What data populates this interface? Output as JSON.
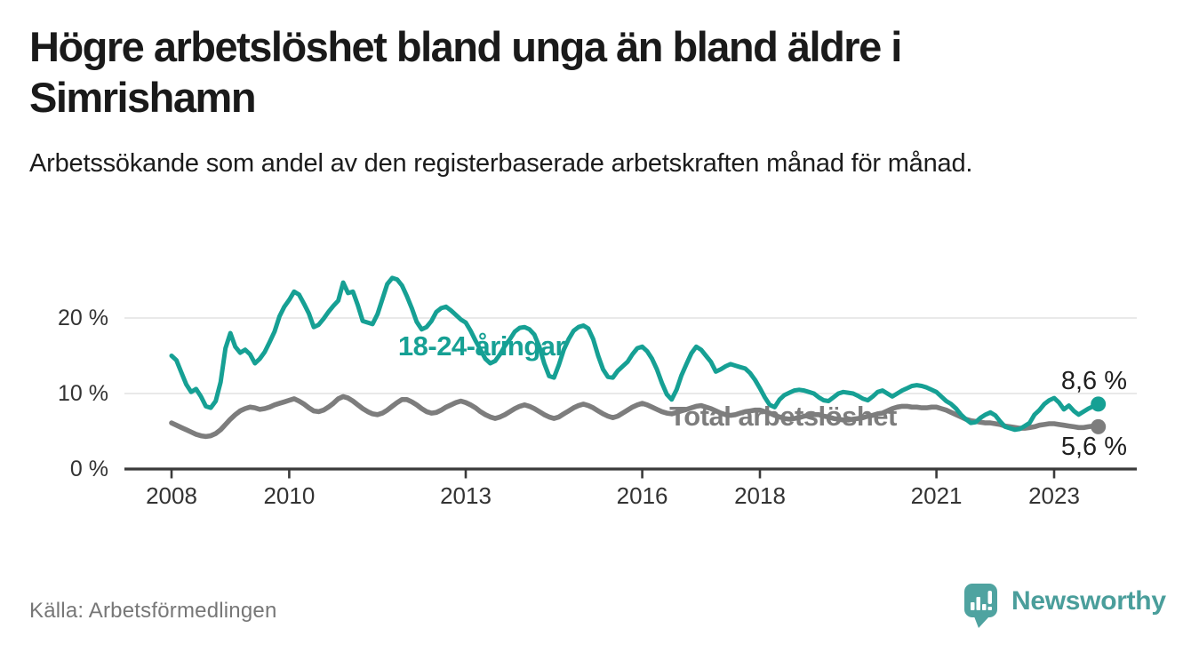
{
  "header": {
    "title": "Högre arbetslöshet bland unga än bland äldre i Simrishamn",
    "subtitle": "Arbetssökande som andel av den registerbaserade arbetskraften månad för månad."
  },
  "footer": {
    "source": "Källa: Arbetsförmedlingen",
    "brand": "Newsworthy"
  },
  "colors": {
    "youth": "#16A094",
    "total": "#7d7d7d",
    "axis": "#3a3a3a",
    "gridline": "#e2e2e2",
    "text": "#333333",
    "brand_teal": "#4A9E9B"
  },
  "chart_data": {
    "type": "line",
    "title": "Högre arbetslöshet bland unga än bland äldre i Simrishamn",
    "subtitle": "Arbetssökande som andel av den registerbaserade arbetskraften månad för månad.",
    "unit": "%",
    "frequency": "monthly",
    "x_start": "2008-01",
    "x_end": "2023-10",
    "grid": "horizontal",
    "legend": "inline-labels",
    "x_ticks": [
      2008,
      2010,
      2013,
      2016,
      2018,
      2021,
      2023
    ],
    "y_ticks": [
      {
        "value": 0,
        "label": "0 %"
      },
      {
        "value": 10,
        "label": "10 %"
      },
      {
        "value": 20,
        "label": "20 %"
      }
    ],
    "ylim": [
      0,
      27
    ],
    "series": [
      {
        "name": "18-24-åringar",
        "color": "#16A094",
        "end_label": "8,6 %",
        "final_value": 8.6,
        "values": [
          15.0,
          14.4,
          12.8,
          11.2,
          10.2,
          10.6,
          9.6,
          8.3,
          8.1,
          9.0,
          11.5,
          16.0,
          18.0,
          16.2,
          15.4,
          15.8,
          15.2,
          14.0,
          14.6,
          15.5,
          16.8,
          18.2,
          20.2,
          21.5,
          22.4,
          23.5,
          23.1,
          21.9,
          20.6,
          18.8,
          19.1,
          19.9,
          20.8,
          21.6,
          22.3,
          24.7,
          23.3,
          23.5,
          21.7,
          19.6,
          19.4,
          19.2,
          20.5,
          22.5,
          24.5,
          25.3,
          25.1,
          24.3,
          22.9,
          21.3,
          19.5,
          18.5,
          18.8,
          19.6,
          20.8,
          21.3,
          21.5,
          21.0,
          20.4,
          19.8,
          19.4,
          18.3,
          17.0,
          15.8,
          14.6,
          14.0,
          14.3,
          15.2,
          16.3,
          17.2,
          18.2,
          18.7,
          18.8,
          18.5,
          17.8,
          16.2,
          14.0,
          12.3,
          12.1,
          13.8,
          15.8,
          17.2,
          18.3,
          18.8,
          19.0,
          18.6,
          17.2,
          15.0,
          13.2,
          12.2,
          12.1,
          13.0,
          13.6,
          14.2,
          15.2,
          16.0,
          16.2,
          15.6,
          14.6,
          13.2,
          11.4,
          9.9,
          9.2,
          10.5,
          12.4,
          13.9,
          15.3,
          16.2,
          15.8,
          15.0,
          14.2,
          12.9,
          13.2,
          13.6,
          13.9,
          13.7,
          13.5,
          13.3,
          12.7,
          11.8,
          10.7,
          9.5,
          8.5,
          8.2,
          9.2,
          9.8,
          10.1,
          10.4,
          10.5,
          10.4,
          10.2,
          10.0,
          9.5,
          9.1,
          9.0,
          9.5,
          10.0,
          10.2,
          10.1,
          10.0,
          9.7,
          9.3,
          9.1,
          9.6,
          10.2,
          10.4,
          10.0,
          9.6,
          10.0,
          10.4,
          10.7,
          11.0,
          11.1,
          11.0,
          10.8,
          10.5,
          10.2,
          9.6,
          9.0,
          8.6,
          8.0,
          7.2,
          6.6,
          6.1,
          6.2,
          6.8,
          7.2,
          7.5,
          7.1,
          6.3,
          5.6,
          5.4,
          5.2,
          5.3,
          5.7,
          6.1,
          7.2,
          7.8,
          8.6,
          9.1,
          9.4,
          8.8,
          7.9,
          8.4,
          7.7,
          7.2,
          7.6,
          8.0,
          8.3,
          8.6
        ]
      },
      {
        "name": "Total arbetslöshet",
        "color": "#7d7d7d",
        "end_label": "5,6 %",
        "final_value": 5.6,
        "values": [
          6.1,
          5.8,
          5.5,
          5.2,
          4.9,
          4.6,
          4.4,
          4.3,
          4.4,
          4.7,
          5.2,
          5.9,
          6.6,
          7.2,
          7.7,
          8.0,
          8.2,
          8.1,
          7.9,
          8.0,
          8.2,
          8.5,
          8.7,
          8.9,
          9.1,
          9.3,
          9.0,
          8.6,
          8.1,
          7.7,
          7.6,
          7.8,
          8.2,
          8.7,
          9.3,
          9.6,
          9.4,
          9.0,
          8.5,
          8.0,
          7.6,
          7.3,
          7.2,
          7.4,
          7.8,
          8.3,
          8.8,
          9.2,
          9.2,
          8.9,
          8.5,
          8.0,
          7.6,
          7.4,
          7.5,
          7.8,
          8.2,
          8.5,
          8.8,
          9.0,
          8.8,
          8.5,
          8.1,
          7.6,
          7.2,
          6.9,
          6.7,
          6.9,
          7.2,
          7.6,
          8.0,
          8.3,
          8.5,
          8.3,
          8.0,
          7.6,
          7.2,
          6.9,
          6.7,
          6.9,
          7.3,
          7.7,
          8.1,
          8.4,
          8.6,
          8.4,
          8.1,
          7.7,
          7.3,
          7.0,
          6.8,
          7.0,
          7.4,
          7.8,
          8.2,
          8.5,
          8.7,
          8.5,
          8.2,
          7.9,
          7.6,
          7.4,
          7.3,
          7.5,
          7.7,
          7.9,
          8.1,
          8.3,
          8.4,
          8.2,
          8.0,
          7.7,
          7.4,
          7.2,
          7.1,
          7.2,
          7.4,
          7.6,
          7.7,
          7.8,
          7.8,
          7.6,
          7.4,
          7.1,
          6.9,
          6.7,
          6.6,
          6.7,
          6.8,
          7.0,
          7.1,
          7.2,
          7.2,
          7.0,
          6.9,
          6.7,
          6.6,
          6.5,
          6.5,
          6.6,
          6.7,
          6.8,
          7.0,
          7.1,
          7.3,
          7.4,
          7.7,
          8.0,
          8.2,
          8.3,
          8.3,
          8.2,
          8.2,
          8.1,
          8.1,
          8.2,
          8.2,
          8.0,
          7.8,
          7.5,
          7.2,
          6.9,
          6.6,
          6.4,
          6.3,
          6.2,
          6.1,
          6.1,
          6.0,
          5.9,
          5.7,
          5.6,
          5.5,
          5.4,
          5.4,
          5.5,
          5.6,
          5.8,
          5.9,
          6.0,
          6.0,
          5.9,
          5.8,
          5.7,
          5.6,
          5.5,
          5.5,
          5.6,
          5.7,
          5.6
        ]
      }
    ]
  }
}
